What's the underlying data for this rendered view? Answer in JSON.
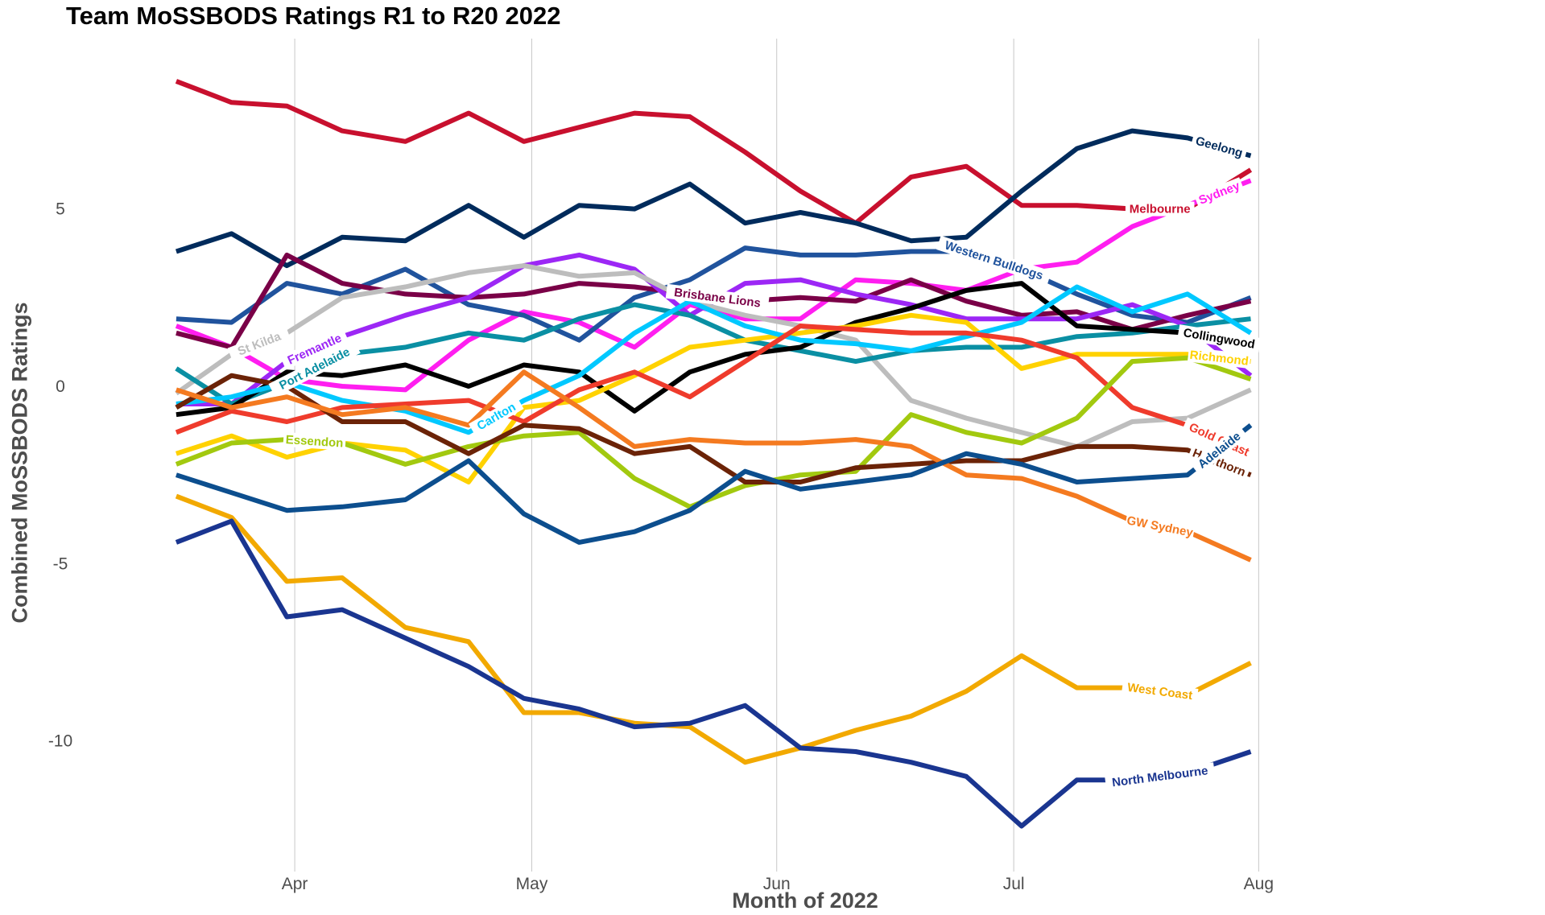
{
  "chart_data": {
    "type": "line",
    "title": "Team MoSSBODS Ratings R1 to R20 2022",
    "xlabel": "Month of 2022",
    "ylabel": "Combined MoSSBODS Ratings",
    "x_ticks": [
      {
        "date": "2022-04-01",
        "label": "Apr"
      },
      {
        "date": "2022-05-01",
        "label": "May"
      },
      {
        "date": "2022-06-01",
        "label": "Jun"
      },
      {
        "date": "2022-07-01",
        "label": "Jul"
      },
      {
        "date": "2022-08-01",
        "label": "Aug"
      }
    ],
    "y_ticks": [
      5,
      0,
      -5,
      -10
    ],
    "xlim": [
      "2022-03-11",
      "2022-08-19"
    ],
    "ylim": [
      -13.5,
      9.8
    ],
    "grid": "vertical gridlines at month starts",
    "legend": "labels placed along lines",
    "x": [
      "2022-03-17",
      "2022-03-24",
      "2022-03-31",
      "2022-04-07",
      "2022-04-15",
      "2022-04-23",
      "2022-04-30",
      "2022-05-07",
      "2022-05-14",
      "2022-05-21",
      "2022-05-28",
      "2022-06-04",
      "2022-06-11",
      "2022-06-18",
      "2022-06-25",
      "2022-07-02",
      "2022-07-09",
      "2022-07-16",
      "2022-07-23",
      "2022-07-31"
    ],
    "series": [
      {
        "name": "Melbourne",
        "color": "#c8102e",
        "label_index": 17,
        "values": [
          8.6,
          8.0,
          7.9,
          7.2,
          6.9,
          7.7,
          6.9,
          7.3,
          7.7,
          7.6,
          6.6,
          5.5,
          4.6,
          5.9,
          6.2,
          5.1,
          5.1,
          5.0,
          5.0,
          6.1
        ]
      },
      {
        "name": "Geelong",
        "color": "#002b5c",
        "label_index": 18,
        "values": [
          3.8,
          4.3,
          3.4,
          4.2,
          4.1,
          5.1,
          4.2,
          5.1,
          5.0,
          5.7,
          4.6,
          4.9,
          4.6,
          4.1,
          4.2,
          5.5,
          6.7,
          7.2,
          7.0,
          6.5
        ]
      },
      {
        "name": "Sydney",
        "color": "#ff1ef0",
        "label_index": 18,
        "values": [
          1.7,
          1.1,
          0.2,
          0.0,
          -0.1,
          1.3,
          2.1,
          1.8,
          1.1,
          2.3,
          1.9,
          1.9,
          3.0,
          2.9,
          2.7,
          3.3,
          3.5,
          4.5,
          5.1,
          5.8
        ]
      },
      {
        "name": "Western Bulldogs",
        "color": "#20539d",
        "label_index": 14,
        "values": [
          1.9,
          1.8,
          2.9,
          2.6,
          3.3,
          2.3,
          2.0,
          1.3,
          2.5,
          3.0,
          3.9,
          3.7,
          3.7,
          3.8,
          3.8,
          3.3,
          2.6,
          2.0,
          1.8,
          2.5
        ]
      },
      {
        "name": "Brisbane Lions",
        "color": "#7a0047",
        "label_index": 9,
        "values": [
          1.5,
          1.1,
          3.7,
          2.9,
          2.6,
          2.5,
          2.6,
          2.9,
          2.8,
          2.6,
          2.4,
          2.5,
          2.4,
          3.0,
          2.4,
          2.0,
          2.1,
          1.6,
          2.0,
          2.4
        ]
      },
      {
        "name": "Fremantle",
        "color": "#9c27f5",
        "label_index": 2,
        "values": [
          -0.5,
          -0.5,
          0.7,
          1.4,
          2.0,
          2.5,
          3.4,
          3.7,
          3.3,
          2.0,
          2.9,
          3.0,
          2.6,
          2.3,
          1.9,
          1.9,
          1.9,
          2.3,
          1.7,
          0.3
        ]
      },
      {
        "name": "St Kilda",
        "color": "#bdbdbd",
        "label_index": 1,
        "values": [
          -0.2,
          0.9,
          1.5,
          2.5,
          2.8,
          3.2,
          3.4,
          3.1,
          3.2,
          2.4,
          2.0,
          1.7,
          1.3,
          -0.4,
          -0.9,
          -1.3,
          -1.7,
          -1.0,
          -0.9,
          -0.1
        ]
      },
      {
        "name": "Port Adelaide",
        "color": "#0a8fa3",
        "label_index": 2,
        "values": [
          0.5,
          -0.5,
          0.1,
          0.9,
          1.1,
          1.5,
          1.3,
          1.9,
          2.3,
          2.0,
          1.3,
          1.0,
          0.7,
          1.0,
          1.1,
          1.1,
          1.4,
          1.5,
          1.7,
          1.9
        ]
      },
      {
        "name": "Collingwood",
        "color": "#000000",
        "label_index": 18,
        "values": [
          -0.8,
          -0.6,
          0.4,
          0.3,
          0.6,
          0.0,
          0.6,
          0.4,
          -0.7,
          0.4,
          0.9,
          1.1,
          1.8,
          2.2,
          2.7,
          2.9,
          1.7,
          1.6,
          1.5,
          1.2
        ]
      },
      {
        "name": "Richmond",
        "color": "#ffd200",
        "label_index": 18,
        "values": [
          -1.9,
          -1.4,
          -2.0,
          -1.6,
          -1.8,
          -2.7,
          -0.6,
          -0.4,
          0.3,
          1.1,
          1.3,
          1.5,
          1.7,
          2.0,
          1.8,
          0.5,
          0.9,
          0.9,
          0.9,
          0.7
        ]
      },
      {
        "name": "Carlton",
        "color": "#00c8ff",
        "label_index": 5,
        "values": [
          -0.5,
          -0.3,
          0.1,
          -0.4,
          -0.7,
          -1.3,
          -0.4,
          0.3,
          1.5,
          2.4,
          1.7,
          1.3,
          1.2,
          1.0,
          1.4,
          1.8,
          2.8,
          2.1,
          2.6,
          1.5
        ]
      },
      {
        "name": "Gold Coast",
        "color": "#ef3b2c",
        "label_index": 18,
        "values": [
          -1.3,
          -0.7,
          -1.0,
          -0.6,
          -0.5,
          -0.4,
          -1.0,
          -0.1,
          0.4,
          -0.3,
          0.7,
          1.7,
          1.6,
          1.5,
          1.5,
          1.3,
          0.8,
          -0.6,
          -1.1,
          -1.9
        ]
      },
      {
        "name": "Essendon",
        "color": "#a2c90f",
        "label_index": 2,
        "values": [
          -2.2,
          -1.6,
          -1.5,
          -1.6,
          -2.2,
          -1.7,
          -1.4,
          -1.3,
          -2.6,
          -3.4,
          -2.8,
          -2.5,
          -2.4,
          -0.8,
          -1.3,
          -1.6,
          -0.9,
          0.7,
          0.8,
          0.2
        ]
      },
      {
        "name": "Hawthorn",
        "color": "#6b2307",
        "label_index": 18,
        "values": [
          -0.6,
          0.3,
          0.0,
          -1.0,
          -1.0,
          -1.9,
          -1.1,
          -1.2,
          -1.9,
          -1.7,
          -2.7,
          -2.7,
          -2.3,
          -2.2,
          -2.1,
          -2.1,
          -1.7,
          -1.7,
          -1.8,
          -2.5
        ]
      },
      {
        "name": "GW Sydney",
        "color": "#f47a20",
        "label_index": 17,
        "values": [
          -0.1,
          -0.6,
          -0.3,
          -0.8,
          -0.6,
          -1.1,
          0.4,
          -0.6,
          -1.7,
          -1.5,
          -1.6,
          -1.6,
          -1.5,
          -1.7,
          -2.5,
          -2.6,
          -3.1,
          -3.8,
          -4.1,
          -4.9
        ]
      },
      {
        "name": "Adelaide",
        "color": "#0c4e8e",
        "label_index": 18,
        "values": [
          -2.5,
          -3.0,
          -3.5,
          -3.4,
          -3.2,
          -2.1,
          -3.6,
          -4.4,
          -4.1,
          -3.5,
          -2.4,
          -2.9,
          -2.7,
          -2.5,
          -1.9,
          -2.2,
          -2.7,
          -2.6,
          -2.5,
          -1.1
        ]
      },
      {
        "name": "West Coast",
        "color": "#f2a900",
        "label_index": 17,
        "values": [
          -3.1,
          -3.7,
          -5.5,
          -5.4,
          -6.8,
          -7.2,
          -9.2,
          -9.2,
          -9.5,
          -9.6,
          -10.6,
          -10.2,
          -9.7,
          -9.3,
          -8.6,
          -7.6,
          -8.5,
          -8.5,
          -8.7,
          -7.8
        ]
      },
      {
        "name": "North Melbourne",
        "color": "#1a3590",
        "label_index": 17,
        "values": [
          -4.4,
          -3.8,
          -6.5,
          -6.3,
          -7.1,
          -7.9,
          -8.8,
          -9.1,
          -9.6,
          -9.5,
          -9.0,
          -10.2,
          -10.3,
          -10.6,
          -11.0,
          -12.4,
          -11.1,
          -11.1,
          -10.9,
          -10.3
        ]
      }
    ]
  }
}
